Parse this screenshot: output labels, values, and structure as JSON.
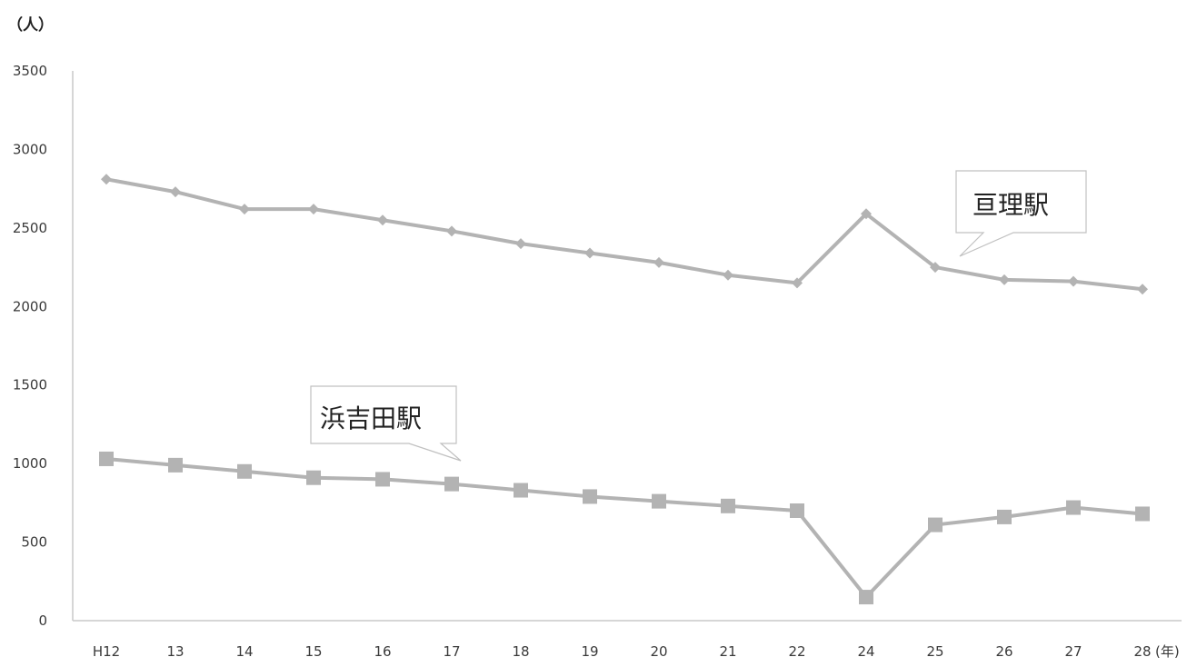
{
  "chart_data": {
    "type": "line",
    "y_unit_label": "（人）",
    "x_unit_label": "(年)",
    "categories": [
      "H12",
      "13",
      "14",
      "15",
      "16",
      "17",
      "18",
      "19",
      "20",
      "21",
      "22",
      "24",
      "25",
      "26",
      "27",
      "28"
    ],
    "ylim": [
      0,
      3500
    ],
    "yticks": [
      "0",
      "500",
      "1000",
      "1500",
      "2000",
      "2500",
      "3000",
      "3500"
    ],
    "grid": false,
    "series": [
      {
        "name": "亘理駅",
        "marker": "diamond",
        "color": "#b3b3b3",
        "values": [
          2810,
          2730,
          2620,
          2620,
          2550,
          2480,
          2400,
          2340,
          2280,
          2200,
          2150,
          2590,
          2250,
          2170,
          2160,
          2110
        ]
      },
      {
        "name": "浜吉田駅",
        "marker": "square",
        "color": "#b3b3b3",
        "values": [
          1030,
          990,
          950,
          910,
          900,
          870,
          830,
          790,
          760,
          730,
          700,
          150,
          610,
          660,
          720,
          680
        ]
      }
    ]
  }
}
